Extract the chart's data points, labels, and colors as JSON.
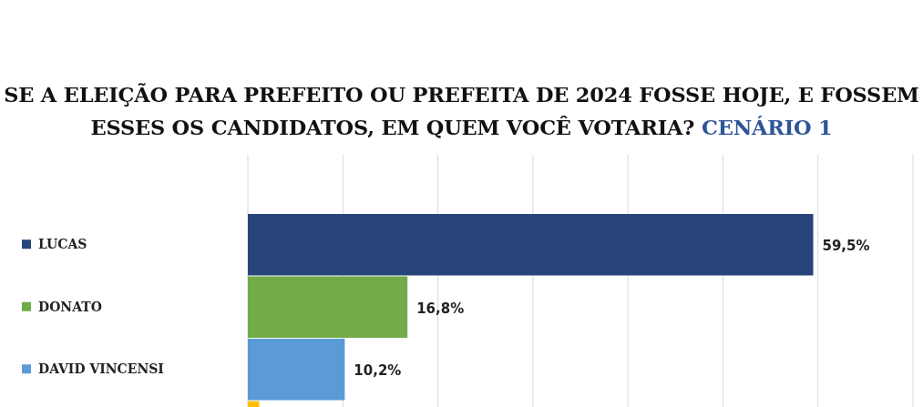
{
  "chart_data": {
    "type": "bar",
    "orientation": "horizontal",
    "title": "SE A ELEIÇÃO PARA PREFEITO OU PREFEITA DE 2024 FOSSE HOJE, E FOSSEM ESSES OS CANDIDATOS, EM QUEM VOCÊ VOTARIA?",
    "subtitle": "CENÁRIO 1",
    "categories": [
      "LUCAS",
      "DONATO",
      "DAVID VINCENSI",
      null
    ],
    "values": [
      59.5,
      16.8,
      10.2,
      1.2
    ],
    "colors": [
      "#27457a",
      "#72ac48",
      "#5b9bd5",
      "#ffc000"
    ],
    "value_labels": [
      "59,5%",
      "16,8%",
      "10,2%",
      null
    ],
    "xlim": [
      0,
      70
    ],
    "xticks": [
      {
        "value": 0,
        "label": null
      },
      {
        "value": 10,
        "label": null
      },
      {
        "value": 20,
        "label": null
      },
      {
        "value": 30,
        "label": null
      },
      {
        "value": 40,
        "label": null
      },
      {
        "value": 50,
        "label": null
      },
      {
        "value": 60,
        "label": null
      },
      {
        "value": 70,
        "label": null
      }
    ],
    "grid": "x"
  }
}
